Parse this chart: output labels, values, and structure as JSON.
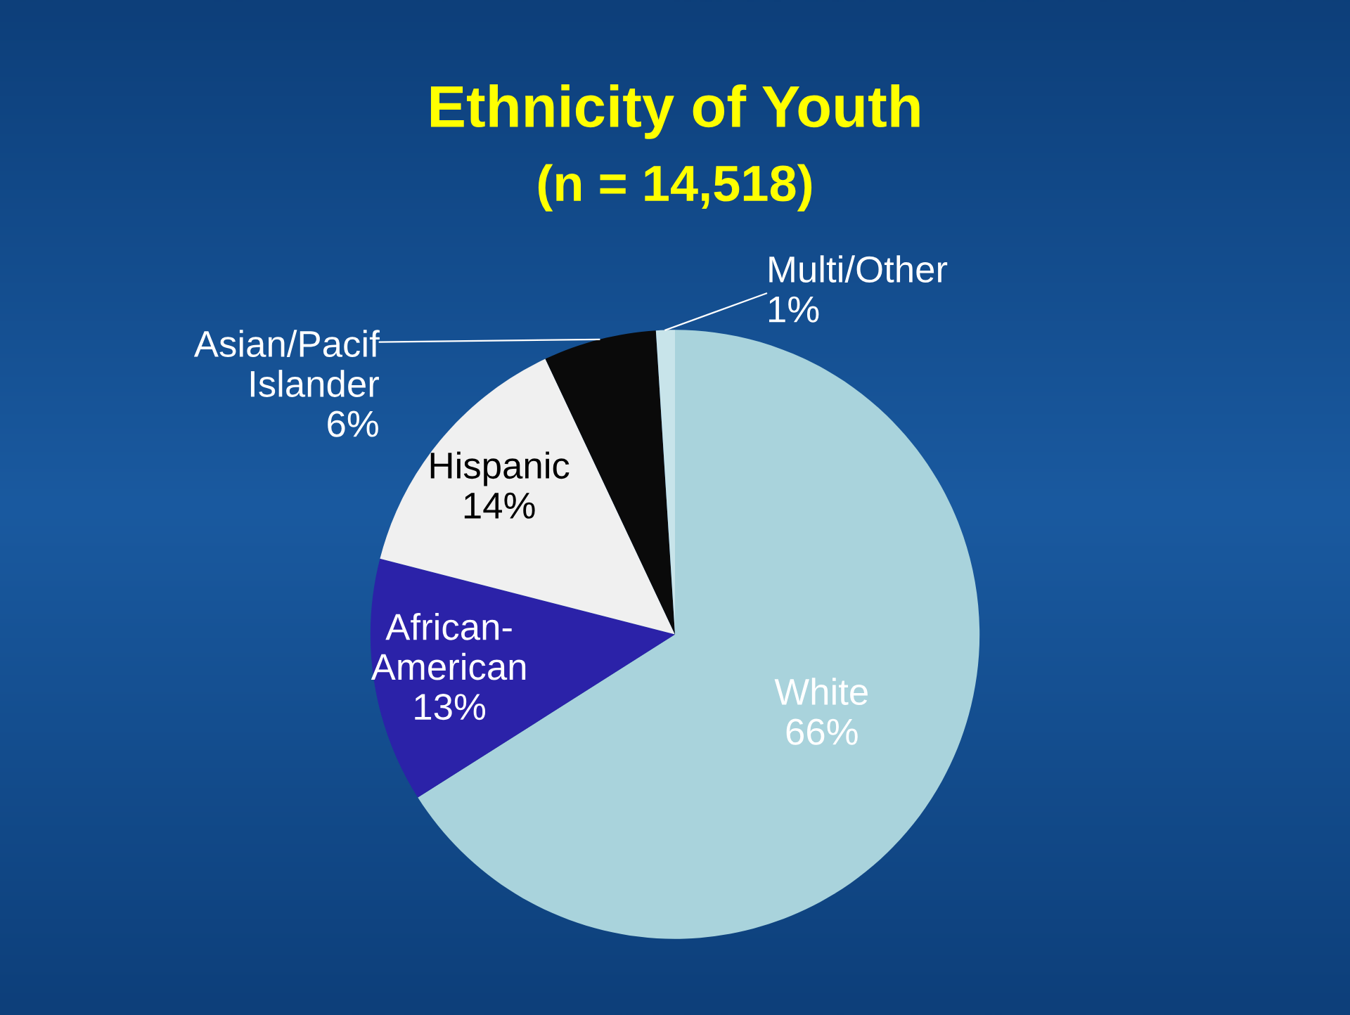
{
  "chart_data": {
    "type": "pie",
    "title": "Ethnicity of Youth",
    "subtitle": "(n = 14,518)",
    "categories": [
      "White",
      "African-\nAmerican",
      "Hispanic",
      "Asian/Pacif\nIslander",
      "Multi/Other"
    ],
    "values": [
      66,
      13,
      14,
      6,
      1
    ],
    "colors": [
      "#a9d3dc",
      "#2b22a8",
      "#f0f0f0",
      "#0a0a0a",
      "#c8e4ea"
    ],
    "value_labels": [
      "66%",
      "13%",
      "14%",
      "6%",
      "1%"
    ],
    "legend": false
  }
}
